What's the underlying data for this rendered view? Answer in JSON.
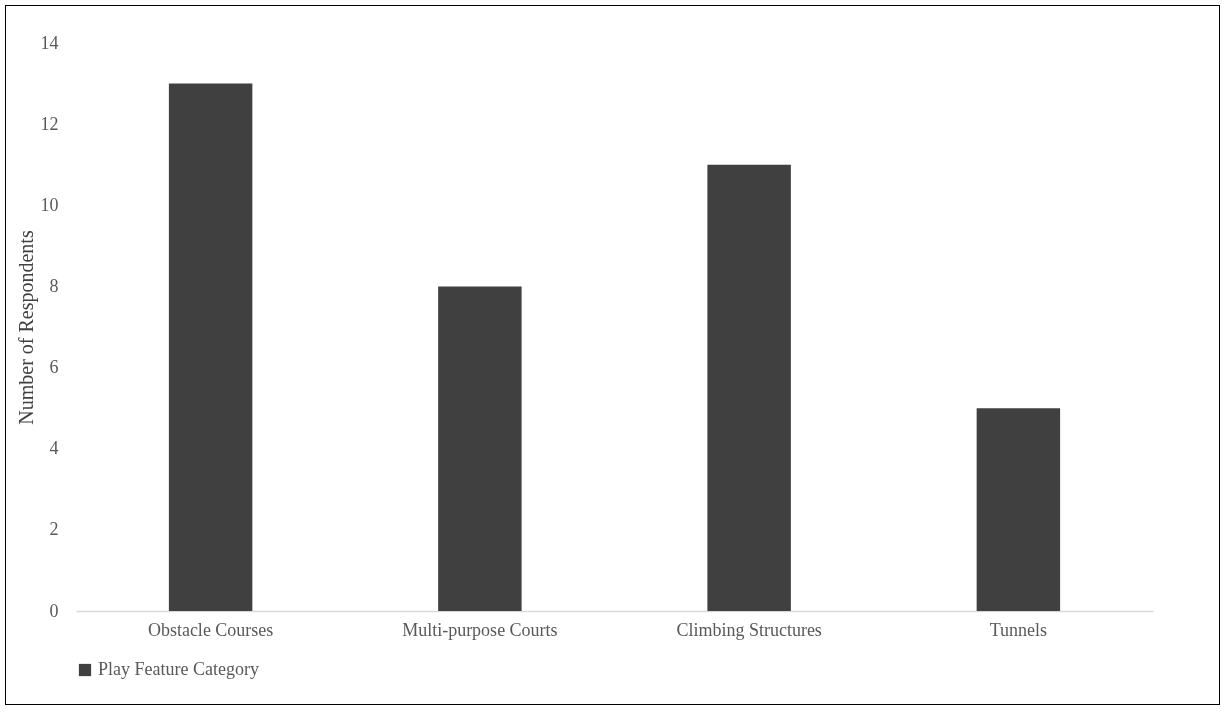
{
  "chart_data": {
    "type": "bar",
    "ylabel": "Number of Respondents",
    "categories": [
      "Obstacle Courses",
      "Multi-purpose Courts",
      "Climbing Structures",
      "Tunnels"
    ],
    "series": [
      {
        "name": "Play Feature Category",
        "color": "#404040",
        "values": [
          13,
          8,
          11,
          5
        ]
      }
    ],
    "ylim": [
      0,
      14
    ],
    "yticks": [
      0,
      2,
      4,
      6,
      8,
      10,
      12,
      14
    ],
    "grid": false,
    "legend": "bottom"
  }
}
